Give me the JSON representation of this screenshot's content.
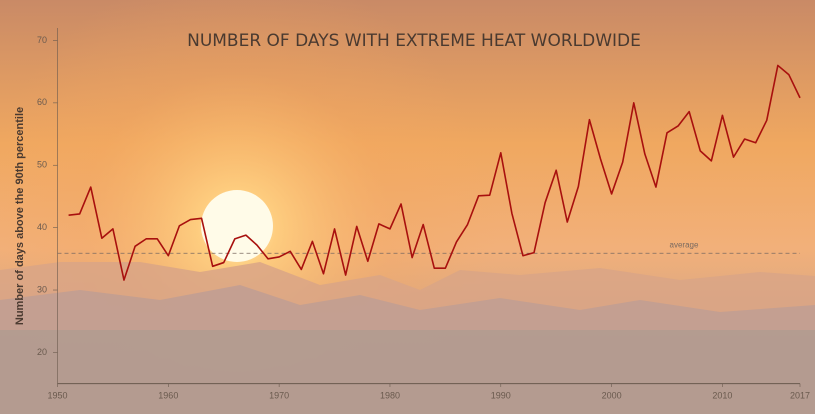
{
  "chart_data": {
    "type": "line",
    "title": "NUMBER OF DAYS WITH EXTREME HEAT WORLDWIDE",
    "y_label": "Number of days above the 90th percentile",
    "x": [
      1951,
      1952,
      1953,
      1954,
      1955,
      1956,
      1957,
      1958,
      1959,
      1960,
      1961,
      1962,
      1963,
      1964,
      1965,
      1966,
      1967,
      1968,
      1969,
      1970,
      1971,
      1972,
      1973,
      1974,
      1975,
      1976,
      1977,
      1978,
      1979,
      1980,
      1981,
      1982,
      1983,
      1984,
      1985,
      1986,
      1987,
      1988,
      1989,
      1990,
      1991,
      1992,
      1993,
      1994,
      1995,
      1996,
      1997,
      1998,
      1999,
      2000,
      2001,
      2002,
      2003,
      2004,
      2005,
      2006,
      2007,
      2008,
      2009,
      2010,
      2011,
      2012,
      2013,
      2014,
      2015,
      2016,
      2017
    ],
    "values": [
      42,
      42.2,
      46.5,
      38.3,
      39.8,
      31.6,
      37,
      38.2,
      38.2,
      35.5,
      40.3,
      41.3,
      41.5,
      33.8,
      34.4,
      38.2,
      38.8,
      37.2,
      35,
      35.3,
      36.2,
      33.3,
      37.8,
      32.6,
      39.8,
      32.4,
      40.2,
      34.6,
      40.6,
      39.8,
      43.8,
      35.2,
      40.5,
      33.5,
      33.5,
      37.7,
      40.5,
      45.1,
      45.2,
      52,
      42.3,
      35.5,
      36,
      44,
      49.2,
      40.9,
      46.6,
      57.3,
      51,
      45.4,
      50.5,
      60,
      51.8,
      46.5,
      55.2,
      56.3,
      58.6,
      52.3,
      50.7,
      58,
      51.3,
      54.2,
      53.6,
      57.2,
      66,
      64.5,
      60.8
    ],
    "color": "#a8100e",
    "average": {
      "value": 35.9,
      "label": "average"
    },
    "xlim": [
      1950,
      2017
    ],
    "xticks": [
      1950,
      1960,
      1970,
      1980,
      1990,
      2000,
      2010,
      2017
    ],
    "ylim": [
      15,
      72
    ],
    "yticks": [
      20,
      30,
      40,
      50,
      60,
      70
    ]
  }
}
